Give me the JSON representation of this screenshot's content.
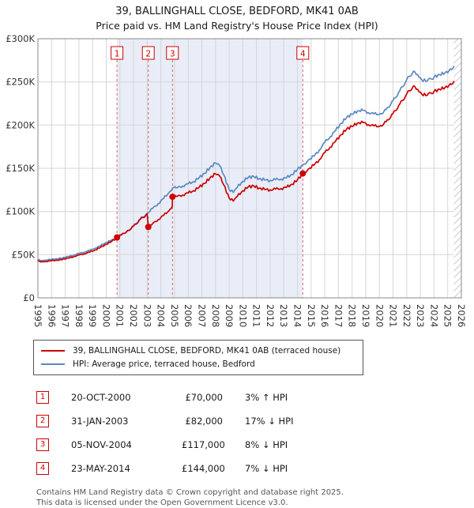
{
  "header": {
    "title": "39, BALLINGHALL CLOSE, BEDFORD, MK41 0AB",
    "subtitle": "Price paid vs. HM Land Registry's House Price Index (HPI)"
  },
  "colors": {
    "price_line": "#cc0000",
    "hpi_line": "#5b89c2",
    "sale_marker": "#cc0000",
    "dashed_sale_line": "#dd6666",
    "shaded_region": "#e9edf8",
    "grid": "#d6d6d6",
    "plot_border": "#888888"
  },
  "chart_data": {
    "type": "line",
    "title": "39, BALLINGHALL CLOSE, BEDFORD, MK41 0AB",
    "subtitle": "Price paid vs. HM Land Registry's House Price Index (HPI)",
    "x_range": [
      1995,
      2026
    ],
    "y_range": [
      0,
      300000
    ],
    "y_ticks": [
      0,
      50000,
      100000,
      150000,
      200000,
      250000,
      300000
    ],
    "y_tick_labels": [
      "£0",
      "£50K",
      "£100K",
      "£150K",
      "£200K",
      "£250K",
      "£300K"
    ],
    "x_ticks": [
      1995,
      1996,
      1997,
      1998,
      1999,
      2000,
      2001,
      2002,
      2003,
      2004,
      2005,
      2006,
      2007,
      2008,
      2009,
      2010,
      2011,
      2012,
      2013,
      2014,
      2015,
      2016,
      2017,
      2018,
      2019,
      2020,
      2021,
      2022,
      2023,
      2024,
      2025,
      2026
    ],
    "grid": true,
    "legend_position": "below",
    "shaded_region": [
      2000.79,
      2014.39
    ],
    "hatched_region": [
      2025.45,
      2026
    ],
    "series": [
      {
        "name": "39, BALLINGHALL CLOSE, BEDFORD, MK41 0AB (terraced house)",
        "color": "#cc0000",
        "points": [
          [
            1995.0,
            42500
          ],
          [
            1995.3,
            41800
          ],
          [
            1995.6,
            42200
          ],
          [
            1996.0,
            43000
          ],
          [
            1996.4,
            43500
          ],
          [
            1996.8,
            44500
          ],
          [
            1997.2,
            46000
          ],
          [
            1997.6,
            47500
          ],
          [
            1998.0,
            49500
          ],
          [
            1998.4,
            51000
          ],
          [
            1998.8,
            53000
          ],
          [
            1999.2,
            55500
          ],
          [
            1999.6,
            58500
          ],
          [
            2000.0,
            62000
          ],
          [
            2000.4,
            65500
          ],
          [
            2000.79,
            70000
          ],
          [
            2001.1,
            73000
          ],
          [
            2001.5,
            76500
          ],
          [
            2002.0,
            83000
          ],
          [
            2002.5,
            91000
          ],
          [
            2003.0,
            97000
          ],
          [
            2003.08,
            82000
          ],
          [
            2003.4,
            86000
          ],
          [
            2003.8,
            90500
          ],
          [
            2004.2,
            95500
          ],
          [
            2004.6,
            101000
          ],
          [
            2004.84,
            106000
          ],
          [
            2004.85,
            117000
          ],
          [
            2005.2,
            117500
          ],
          [
            2005.6,
            119000
          ],
          [
            2006.0,
            121500
          ],
          [
            2006.4,
            124000
          ],
          [
            2006.8,
            128000
          ],
          [
            2007.2,
            132500
          ],
          [
            2007.6,
            139000
          ],
          [
            2008.0,
            143500
          ],
          [
            2008.3,
            141000
          ],
          [
            2008.6,
            131000
          ],
          [
            2009.0,
            115500
          ],
          [
            2009.3,
            112000
          ],
          [
            2009.6,
            117500
          ],
          [
            2010.0,
            124000
          ],
          [
            2010.4,
            128500
          ],
          [
            2010.8,
            129500
          ],
          [
            2011.2,
            127000
          ],
          [
            2011.6,
            125500
          ],
          [
            2012.0,
            125000
          ],
          [
            2012.4,
            126000
          ],
          [
            2012.8,
            126500
          ],
          [
            2013.2,
            128000
          ],
          [
            2013.6,
            131500
          ],
          [
            2014.0,
            136500
          ],
          [
            2014.39,
            144000
          ],
          [
            2014.8,
            149000
          ],
          [
            2015.2,
            153500
          ],
          [
            2015.6,
            160000
          ],
          [
            2016.0,
            168000
          ],
          [
            2016.4,
            174500
          ],
          [
            2016.8,
            181500
          ],
          [
            2017.2,
            189000
          ],
          [
            2017.6,
            195500
          ],
          [
            2018.0,
            198500
          ],
          [
            2018.4,
            202500
          ],
          [
            2018.8,
            203000
          ],
          [
            2019.2,
            200500
          ],
          [
            2019.6,
            199000
          ],
          [
            2020.0,
            198500
          ],
          [
            2020.5,
            204000
          ],
          [
            2021.0,
            213500
          ],
          [
            2021.5,
            224500
          ],
          [
            2022.0,
            236000
          ],
          [
            2022.5,
            245500
          ],
          [
            2022.8,
            241500
          ],
          [
            2023.1,
            236000
          ],
          [
            2023.5,
            234500
          ],
          [
            2024.0,
            239000
          ],
          [
            2024.4,
            241500
          ],
          [
            2024.8,
            243500
          ],
          [
            2025.1,
            246000
          ],
          [
            2025.45,
            250500
          ]
        ]
      },
      {
        "name": "HPI: Average price, terraced house, Bedford",
        "color": "#5b89c2",
        "points": [
          [
            1995.0,
            44000
          ],
          [
            1995.3,
            43200
          ],
          [
            1995.6,
            43800
          ],
          [
            1996.0,
            44500
          ],
          [
            1996.4,
            45200
          ],
          [
            1996.8,
            46200
          ],
          [
            1997.2,
            47800
          ],
          [
            1997.6,
            49300
          ],
          [
            1998.0,
            51300
          ],
          [
            1998.4,
            53000
          ],
          [
            1998.8,
            55000
          ],
          [
            1999.2,
            57500
          ],
          [
            1999.6,
            60500
          ],
          [
            2000.0,
            64000
          ],
          [
            2000.4,
            67000
          ],
          [
            2000.79,
            68000
          ],
          [
            2001.1,
            72500
          ],
          [
            2001.5,
            76800
          ],
          [
            2002.0,
            83500
          ],
          [
            2002.5,
            91500
          ],
          [
            2003.0,
            98000
          ],
          [
            2003.4,
            103500
          ],
          [
            2003.8,
            109000
          ],
          [
            2004.2,
            115000
          ],
          [
            2004.6,
            122000
          ],
          [
            2004.85,
            127000
          ],
          [
            2005.2,
            127500
          ],
          [
            2005.6,
            129500
          ],
          [
            2006.0,
            132000
          ],
          [
            2006.4,
            134500
          ],
          [
            2006.8,
            139000
          ],
          [
            2007.2,
            144000
          ],
          [
            2007.6,
            151000
          ],
          [
            2008.0,
            156000
          ],
          [
            2008.3,
            153000
          ],
          [
            2008.6,
            142500
          ],
          [
            2009.0,
            125500
          ],
          [
            2009.3,
            122000
          ],
          [
            2009.6,
            128000
          ],
          [
            2010.0,
            135000
          ],
          [
            2010.4,
            139500
          ],
          [
            2010.8,
            140500
          ],
          [
            2011.2,
            138000
          ],
          [
            2011.6,
            136500
          ],
          [
            2012.0,
            136000
          ],
          [
            2012.4,
            137000
          ],
          [
            2012.8,
            137500
          ],
          [
            2013.2,
            139000
          ],
          [
            2013.6,
            143000
          ],
          [
            2014.0,
            148500
          ],
          [
            2014.39,
            154000
          ],
          [
            2014.8,
            159500
          ],
          [
            2015.2,
            164000
          ],
          [
            2015.6,
            171000
          ],
          [
            2016.0,
            180000
          ],
          [
            2016.4,
            186500
          ],
          [
            2016.8,
            194000
          ],
          [
            2017.2,
            202000
          ],
          [
            2017.6,
            209000
          ],
          [
            2018.0,
            212500
          ],
          [
            2018.4,
            216500
          ],
          [
            2018.8,
            217000
          ],
          [
            2019.2,
            214500
          ],
          [
            2019.6,
            213000
          ],
          [
            2020.0,
            212500
          ],
          [
            2020.5,
            218000
          ],
          [
            2021.0,
            228500
          ],
          [
            2021.5,
            240000
          ],
          [
            2022.0,
            252500
          ],
          [
            2022.5,
            262500
          ],
          [
            2022.8,
            258500
          ],
          [
            2023.1,
            252500
          ],
          [
            2023.5,
            251000
          ],
          [
            2024.0,
            255500
          ],
          [
            2024.4,
            258500
          ],
          [
            2024.8,
            260500
          ],
          [
            2025.1,
            263000
          ],
          [
            2025.45,
            268000
          ]
        ]
      }
    ],
    "sales": [
      {
        "n": "1",
        "x": 2000.79,
        "price": 70000
      },
      {
        "n": "2",
        "x": 2003.08,
        "price": 82000
      },
      {
        "n": "3",
        "x": 2004.85,
        "price": 117000
      },
      {
        "n": "4",
        "x": 2014.39,
        "price": 144000
      }
    ]
  },
  "legend": {
    "items": [
      {
        "label": "39, BALLINGHALL CLOSE, BEDFORD, MK41 0AB (terraced house)",
        "color": "#cc0000"
      },
      {
        "label": "HPI: Average price, terraced house, Bedford",
        "color": "#5b89c2"
      }
    ]
  },
  "transactions": [
    {
      "num": "1",
      "date": "20-OCT-2000",
      "price": "£70,000",
      "hpi": "3% ↑ HPI"
    },
    {
      "num": "2",
      "date": "31-JAN-2003",
      "price": "£82,000",
      "hpi": "17% ↓ HPI"
    },
    {
      "num": "3",
      "date": "05-NOV-2004",
      "price": "£117,000",
      "hpi": "8% ↓ HPI"
    },
    {
      "num": "4",
      "date": "23-MAY-2014",
      "price": "£144,000",
      "hpi": "7% ↓ HPI"
    }
  ],
  "footer": {
    "line1": "Contains HM Land Registry data © Crown copyright and database right 2025.",
    "line2": "This data is licensed under the Open Government Licence v3.0."
  }
}
